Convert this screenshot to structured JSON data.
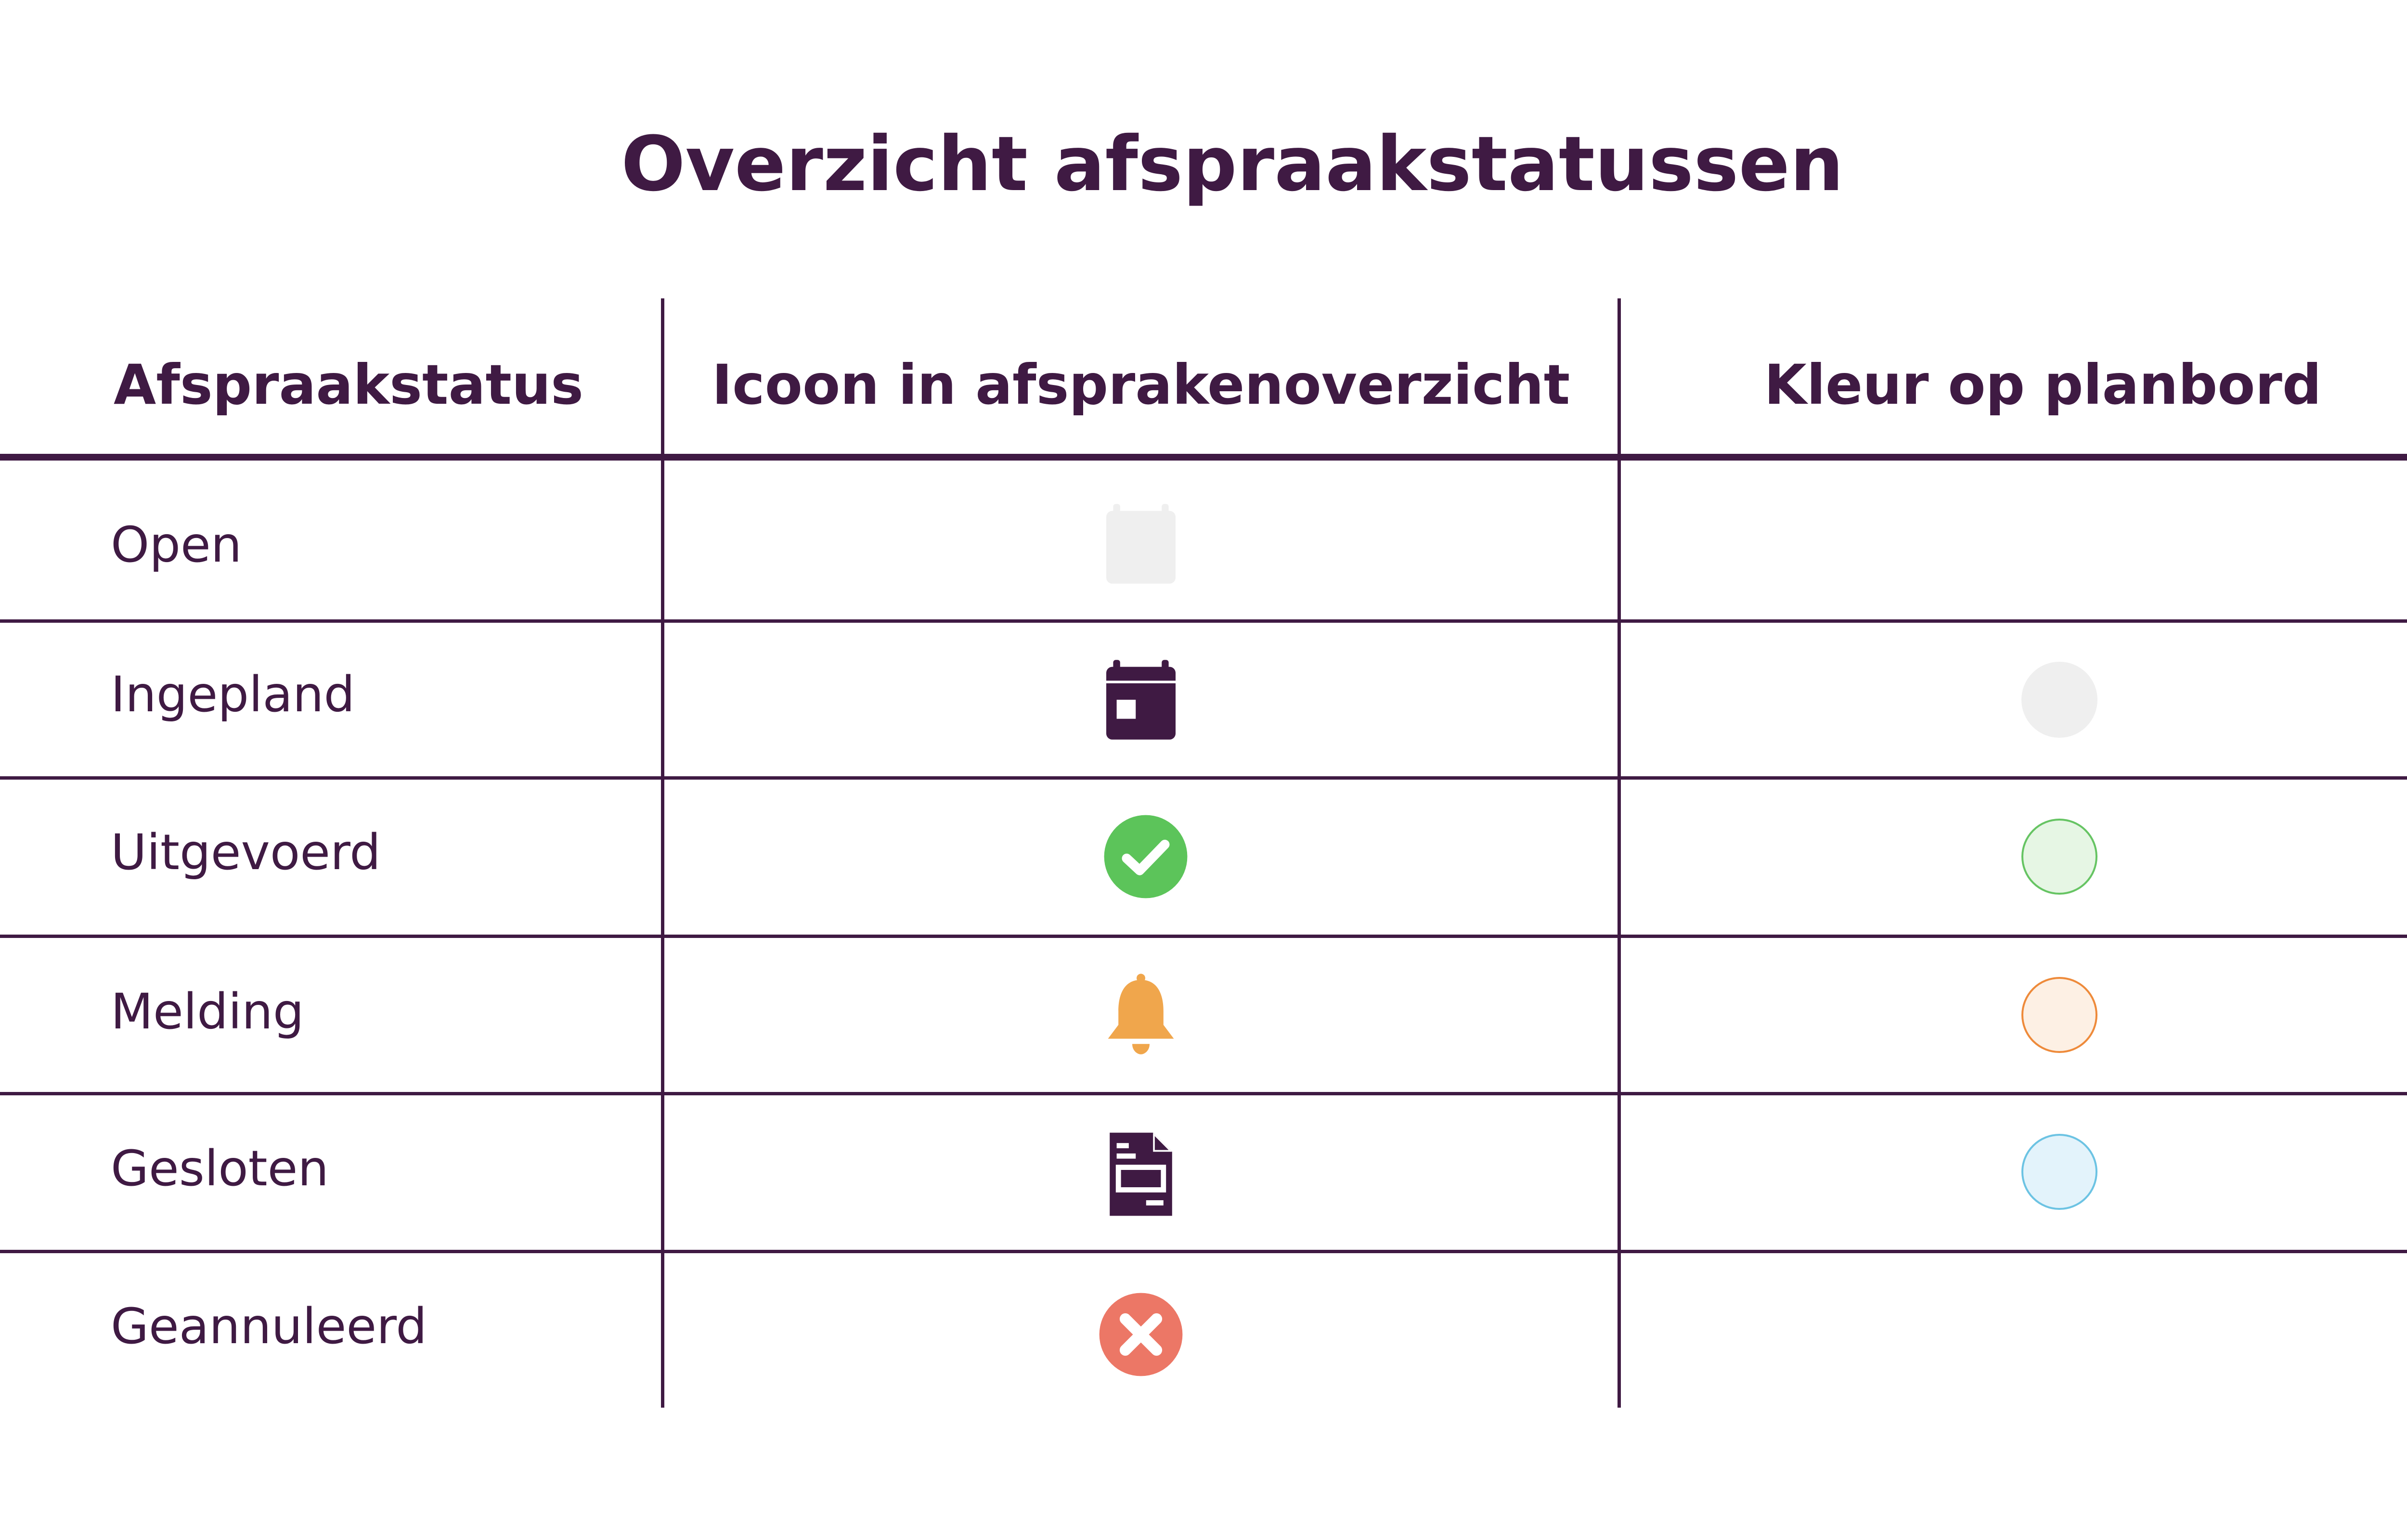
{
  "title": "Overzicht afspraakstatussen",
  "columns": {
    "status": "Afspraakstatus",
    "icon": "Icoon in afsprakenoverzicht",
    "color": "Kleur op planbord"
  },
  "rows": [
    {
      "label": "Open",
      "icon": "calendar-outline-icon",
      "icon_color": "#efefef",
      "swatch": null
    },
    {
      "label": "Ingepland",
      "icon": "calendar-icon",
      "icon_color": "#3f1a43",
      "swatch": {
        "fill": "#efefef",
        "border": "#efefef"
      }
    },
    {
      "label": "Uitgevoerd",
      "icon": "check-circle-icon",
      "icon_color": "#5cc45a",
      "swatch": {
        "fill": "#e6f6e4",
        "border": "#66c463"
      }
    },
    {
      "label": "Melding",
      "icon": "bell-icon",
      "icon_color": "#f0a64c",
      "swatch": {
        "fill": "#fdf0e4",
        "border": "#ee8a3a"
      }
    },
    {
      "label": "Gesloten",
      "icon": "document-icon",
      "icon_color": "#3f1a43",
      "swatch": {
        "fill": "#e3f3fb",
        "border": "#6cc3e3"
      }
    },
    {
      "label": "Geannuleerd",
      "icon": "cancel-circle-icon",
      "icon_color": "#ec7766",
      "swatch": null
    }
  ],
  "colors": {
    "text": "#3f1a43",
    "lines": "#3f1a43",
    "background": "#ffffff"
  }
}
